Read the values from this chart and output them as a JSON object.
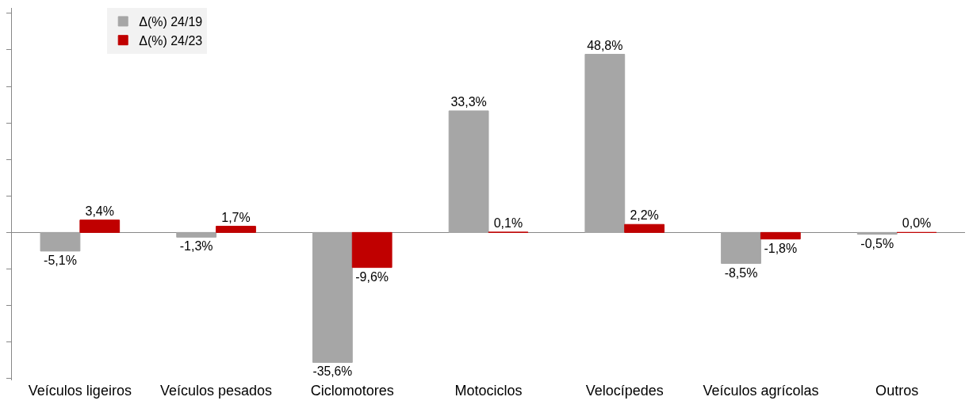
{
  "chart_data": {
    "type": "bar",
    "categories": [
      "Veículos ligeiros",
      "Veículos pesados",
      "Ciclomotores",
      "Motociclos",
      "Velocípedes",
      "Veículos agrícolas",
      "Outros"
    ],
    "series": [
      {
        "name": "Δ(%) 24/19",
        "color": "#a6a6a6",
        "values": [
          -5.1,
          -1.3,
          -35.6,
          33.3,
          48.8,
          -8.5,
          -0.5
        ],
        "value_labels": [
          "-5,1%",
          "-1,3%",
          "-35,6%",
          "33,3%",
          "48,8%",
          "-8,5%",
          "-0,5%"
        ]
      },
      {
        "name": "Δ(%) 24/23",
        "color": "#c00000",
        "values": [
          3.4,
          1.7,
          -9.6,
          0.1,
          2.2,
          -1.8,
          0.0
        ],
        "value_labels": [
          "3,4%",
          "1,7%",
          "-9,6%",
          "0,1%",
          "2,2%",
          "-1,8%",
          "0,0%"
        ]
      }
    ],
    "ylim": [
      -40.5,
      61.5
    ],
    "yticks": [
      {
        "value": -40,
        "label": null
      },
      {
        "value": -30,
        "label": null
      },
      {
        "value": -20,
        "label": null
      },
      {
        "value": -10,
        "label": null
      },
      {
        "value": 0,
        "label": null
      },
      {
        "value": 10,
        "label": null
      },
      {
        "value": 20,
        "label": null
      },
      {
        "value": 30,
        "label": null
      },
      {
        "value": 40,
        "label": null
      },
      {
        "value": 50,
        "label": null
      },
      {
        "value": 60,
        "label": null
      }
    ],
    "legend": "top left",
    "tick_labels": "x"
  }
}
